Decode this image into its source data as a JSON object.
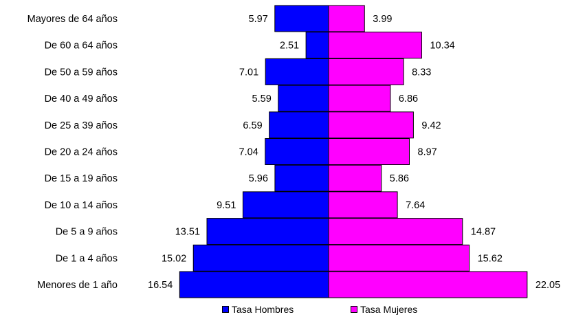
{
  "chart_data": {
    "type": "bar",
    "orientation": "horizontal-population-pyramid",
    "categories": [
      "Mayores de 64 años",
      "De 60 a 64 años",
      "De 50 a 59 años",
      "De 40 a 49 años",
      "De 25 a 39 años",
      "De 20 a 24 años",
      "De 15 a 19 años",
      "De 10 a 14 años",
      "De 5 a 9 años",
      "De 1 a 4 años",
      "Menores de 1 año"
    ],
    "series": [
      {
        "name": "Tasa Hombres",
        "color": "#0000ff",
        "side": "left",
        "values": [
          5.97,
          2.51,
          7.01,
          5.59,
          6.59,
          7.04,
          5.96,
          9.51,
          13.51,
          15.02,
          16.54
        ],
        "labels": [
          "5.97",
          "2.51",
          "7.01",
          "5.59",
          "6.59",
          "7.04",
          "5.96",
          "9.51",
          "13.51",
          "15.02",
          "16.54"
        ]
      },
      {
        "name": "Tasa Mujeres",
        "color": "#ff00ff",
        "side": "right",
        "values": [
          3.99,
          10.34,
          8.33,
          6.86,
          9.42,
          8.97,
          5.86,
          7.64,
          14.87,
          15.62,
          22.05
        ],
        "labels": [
          "3.99",
          "10.34",
          "8.33",
          "6.86",
          "9.42",
          "8.97",
          "5.86",
          "7.64",
          "14.87",
          "15.62",
          "22.05"
        ]
      }
    ],
    "title": "",
    "xlabel": "",
    "ylabel": "",
    "legend_position": "bottom",
    "grid": false
  },
  "legend": {
    "men_label": "Tasa Hombres",
    "women_label": "Tasa Mujeres"
  }
}
